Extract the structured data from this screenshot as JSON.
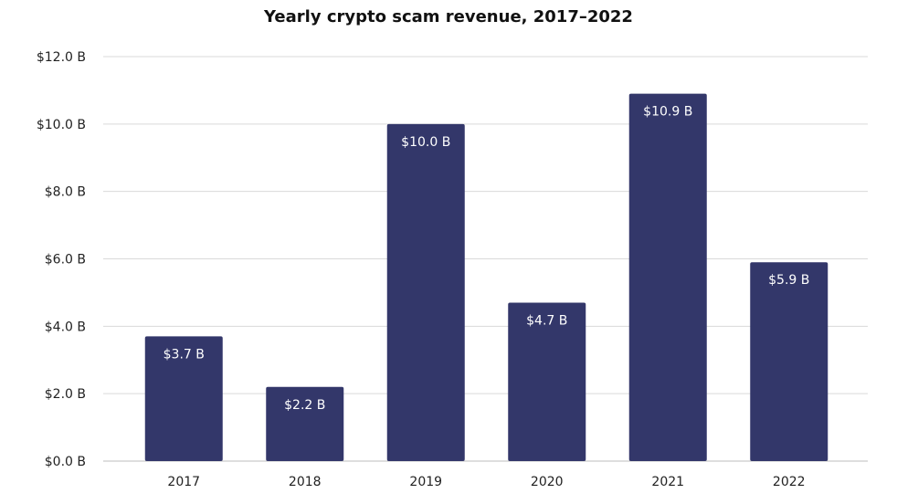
{
  "colors": {
    "bar": "#33376a",
    "grid": "#d9d9d9",
    "baseline": "#bdbdbd",
    "text": "#222222",
    "bar_label": "#ffffff"
  },
  "chart_data": {
    "type": "bar",
    "title": "Yearly crypto scam revenue, 2017–2022",
    "xlabel": "",
    "ylabel": "",
    "categories": [
      "2017",
      "2018",
      "2019",
      "2020",
      "2021",
      "2022"
    ],
    "values": [
      3.7,
      2.2,
      10.0,
      4.7,
      10.9,
      5.9
    ],
    "data_labels": [
      "$3.7 B",
      "$2.2 B",
      "$10.0 B",
      "$4.7 B",
      "$10.9 B",
      "$5.9 B"
    ],
    "ylim": [
      0,
      12
    ],
    "yticks": [
      0,
      2,
      4,
      6,
      8,
      10,
      12
    ],
    "ytick_labels": [
      "$0.0 B",
      "$2.0 B",
      "$4.0 B",
      "$6.0 B",
      "$8.0 B",
      "$10.0 B",
      "$12.0 B"
    ],
    "grid": true,
    "legend": "none"
  }
}
